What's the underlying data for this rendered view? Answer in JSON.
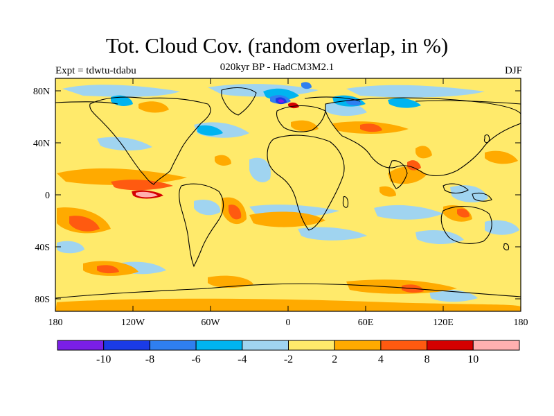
{
  "title": "Tot. Cloud Cov. (random overlap, in %)",
  "subtitle": "020kyr BP - HadCM3M2.1",
  "left_label": "Expt = tdwtu-tdabu",
  "right_label": "DJF",
  "lat_ticks": [
    "80N",
    "40N",
    "0",
    "40S",
    "80S"
  ],
  "lon_ticks": [
    "180",
    "120W",
    "60W",
    "0",
    "60E",
    "120E",
    "180"
  ],
  "colorbar": {
    "colors": [
      "#7a1fe6",
      "#1a3be6",
      "#2f7ff0",
      "#00b4f0",
      "#a0d4f0",
      "#ffea6b",
      "#ffaa00",
      "#ff5a10",
      "#d40000",
      "#ffb0b0"
    ],
    "labels": [
      "-10",
      "-8",
      "-6",
      "-4",
      "-2",
      "2",
      "4",
      "8",
      "10"
    ]
  }
}
